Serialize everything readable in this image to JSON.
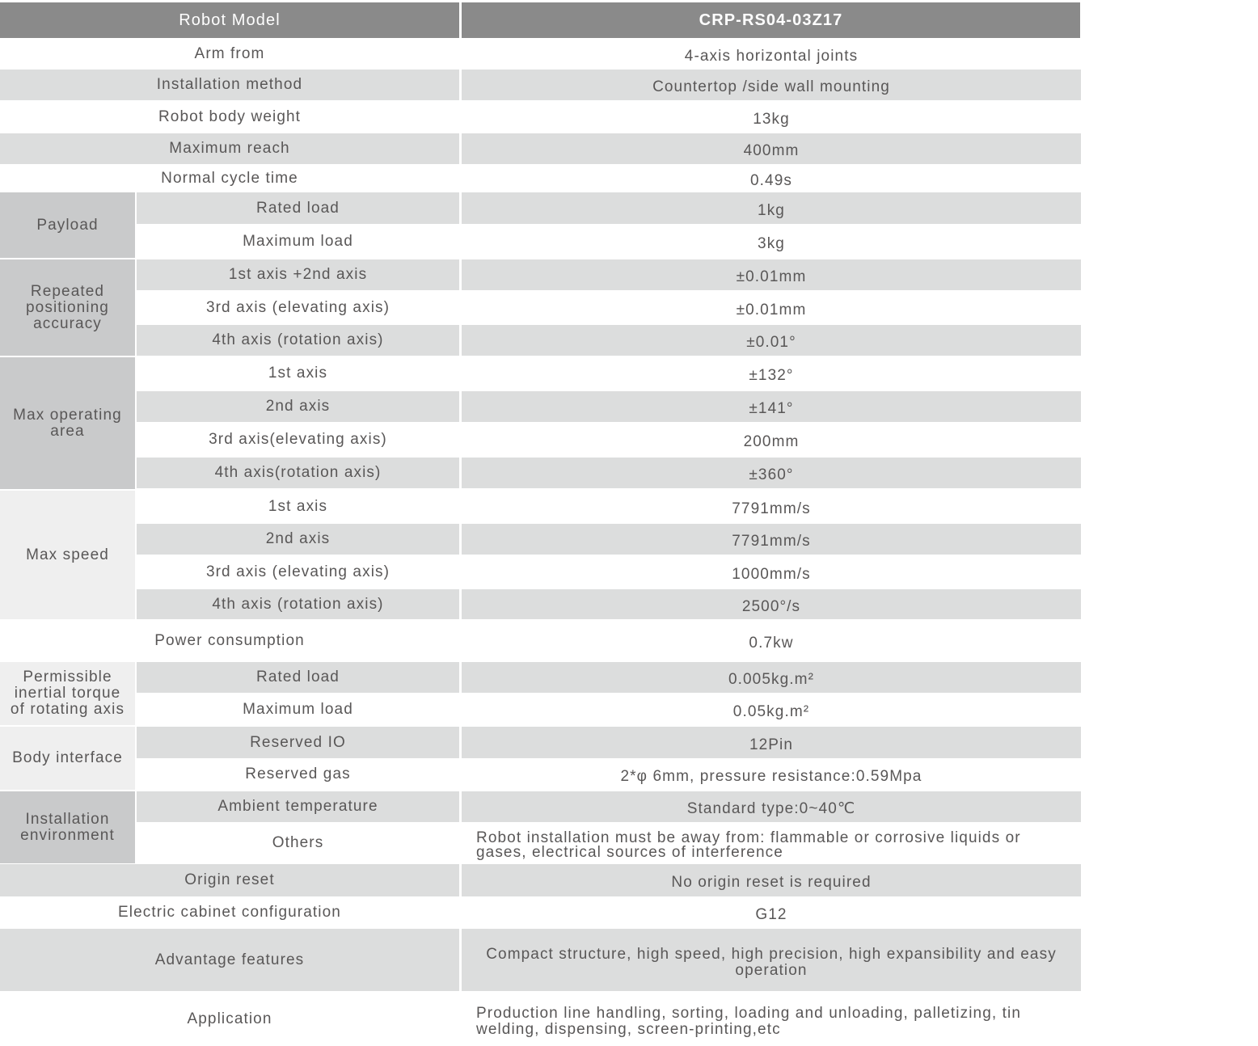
{
  "header": {
    "label": "Robot Model",
    "value": "CRP-RS04-03Z17"
  },
  "colors": {
    "header": "#8a8a8a",
    "stripe": "#dcdddd",
    "group_dark": "#c9cacb",
    "group_light": "#efefef",
    "text": "#595757"
  },
  "rows": [
    {
      "label": "Arm from",
      "value": "4-axis horizontal joints"
    },
    {
      "label": "Installation method",
      "value": "Countertop /side wall mounting"
    },
    {
      "label": "Robot body weight",
      "value": "13kg"
    },
    {
      "label": "Maximum reach",
      "value": "400mm"
    },
    {
      "label": "Normal cycle time",
      "value": "0.49s"
    },
    {
      "group": "Payload",
      "items": [
        {
          "label": "Rated load",
          "value": "1kg"
        },
        {
          "label": "Maximum load",
          "value": "3kg"
        }
      ]
    },
    {
      "group": "Repeated positioning accuracy",
      "items": [
        {
          "label": "1st axis +2nd axis",
          "value": "±0.01mm"
        },
        {
          "label": "3rd axis (elevating axis)",
          "value": "±0.01mm"
        },
        {
          "label": "4th axis (rotation axis)",
          "value": "±0.01°"
        }
      ]
    },
    {
      "group": "Max operating area",
      "items": [
        {
          "label": "1st axis",
          "value": "±132°"
        },
        {
          "label": "2nd axis",
          "value": "±141°"
        },
        {
          "label": "3rd axis(elevating axis)",
          "value": "200mm"
        },
        {
          "label": "4th axis(rotation axis)",
          "value": "±360°"
        }
      ]
    },
    {
      "group": "Max speed",
      "items": [
        {
          "label": "1st axis",
          "value": "7791mm/s"
        },
        {
          "label": "2nd axis",
          "value": "7791mm/s"
        },
        {
          "label": "3rd axis (elevating axis)",
          "value": "1000mm/s"
        },
        {
          "label": "4th axis (rotation axis)",
          "value": "2500°/s"
        }
      ]
    },
    {
      "label": "Power consumption",
      "value": "0.7kw"
    },
    {
      "group": "Permissible inertial torque of rotating axis",
      "items": [
        {
          "label": "Rated load",
          "value": "0.005kg.m²"
        },
        {
          "label": "Maximum load",
          "value": "0.05kg.m²"
        }
      ]
    },
    {
      "group": "Body interface",
      "items": [
        {
          "label": "Reserved IO",
          "value": "12Pin"
        },
        {
          "label": "Reserved gas",
          "value": "2*φ 6mm, pressure resistance:0.59Mpa"
        }
      ]
    },
    {
      "group": "Installation environment",
      "items": [
        {
          "label": "Ambient temperature",
          "value": "Standard type:0~40℃"
        },
        {
          "label": "Others",
          "value": "Robot installation must be away from: flammable or corrosive liquids or gases, electrical sources of interference"
        }
      ]
    },
    {
      "label": "Origin reset",
      "value": "No origin reset is required"
    },
    {
      "label": "Electric cabinet configuration",
      "value": "G12"
    },
    {
      "label": "Advantage features",
      "value": "Compact structure, high speed, high precision, high expansibility and easy operation"
    },
    {
      "label": "Application",
      "value": "Production line handling, sorting, loading and unloading, palletizing, tin welding, dispensing, screen-printing,etc"
    }
  ]
}
